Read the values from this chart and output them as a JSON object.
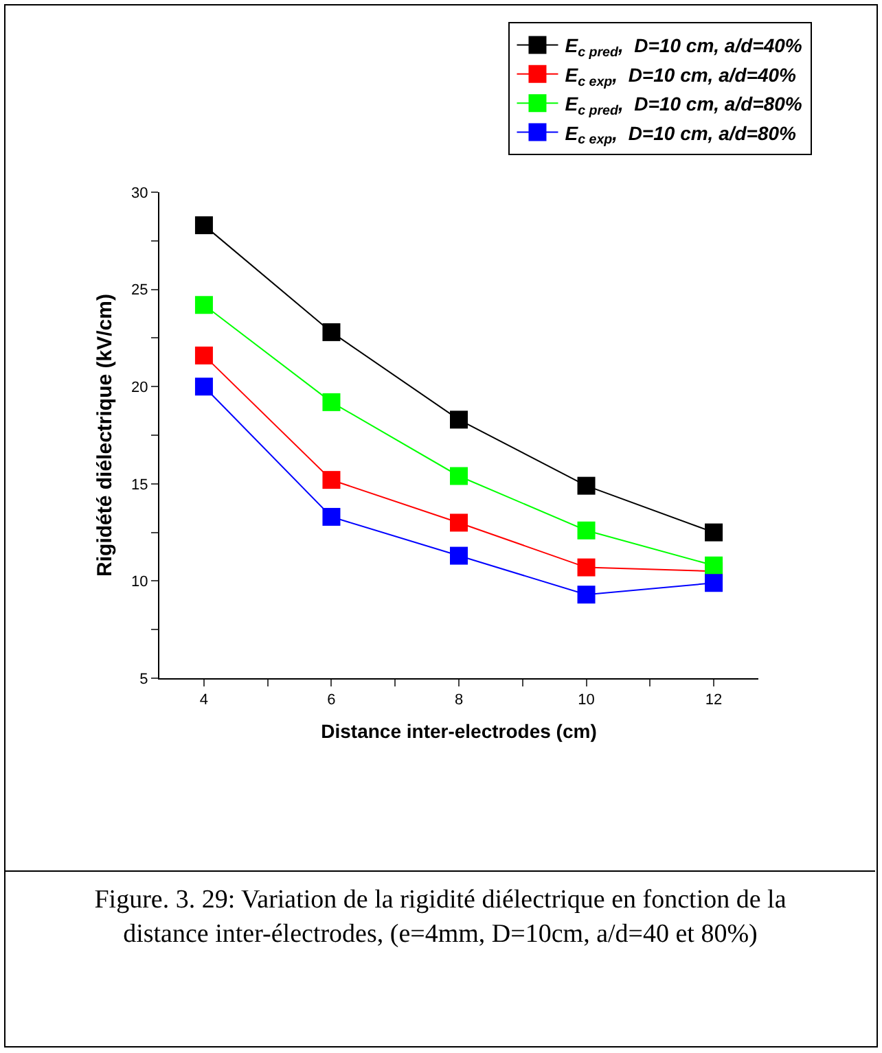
{
  "chart_data": {
    "type": "line",
    "xlabel": "Distance inter-electrodes (cm)",
    "ylabel": "Rigidété diélectrique (kV/cm)",
    "x": [
      4,
      6,
      8,
      10,
      12
    ],
    "series": [
      {
        "name": "E$_{c pred}$,  D=10 cm, a/d=40%",
        "color": "#000000",
        "values": [
          28.3,
          22.8,
          18.3,
          14.9,
          12.5
        ]
      },
      {
        "name": "E$_{c exp}$,  D=10 cm, a/d=40%",
        "color": "#ff0000",
        "values": [
          21.6,
          15.2,
          13.0,
          10.7,
          10.5
        ]
      },
      {
        "name": "E$_{c pred}$,  D=10 cm, a/d=80%",
        "color": "#00ff00",
        "values": [
          24.2,
          19.2,
          15.4,
          12.6,
          10.8
        ]
      },
      {
        "name": "E$_{c exp}$,  D=10 cm, a/d=80%",
        "color": "#0000ff",
        "values": [
          20.0,
          13.3,
          11.3,
          9.3,
          9.9
        ]
      }
    ],
    "xlim": [
      3.3,
      12.7
    ],
    "xticks": [
      4,
      {
        "value": 5,
        "label": null
      },
      6,
      {
        "value": 7,
        "label": null
      },
      8,
      {
        "value": 9,
        "label": null
      },
      10,
      {
        "value": 11,
        "label": null
      },
      12
    ],
    "ylim": [
      5,
      30
    ],
    "yticks": [
      5,
      {
        "value": 7.5,
        "label": null
      },
      10,
      {
        "value": 12.5,
        "label": null
      },
      15,
      {
        "value": 17.5,
        "label": null
      },
      20,
      {
        "value": 22.5,
        "label": null
      },
      25,
      {
        "value": 27.5,
        "label": null
      },
      30
    ],
    "marker": "square",
    "line_style": "solid",
    "legend": "top right",
    "grid": false,
    "annotations": [
      "Figure. 3. 29: Variation de la rigidité diélectrique en fonction de la distance inter-électrodes,  (e=4mm, D=10cm, a/d=40 et 80%)"
    ]
  }
}
